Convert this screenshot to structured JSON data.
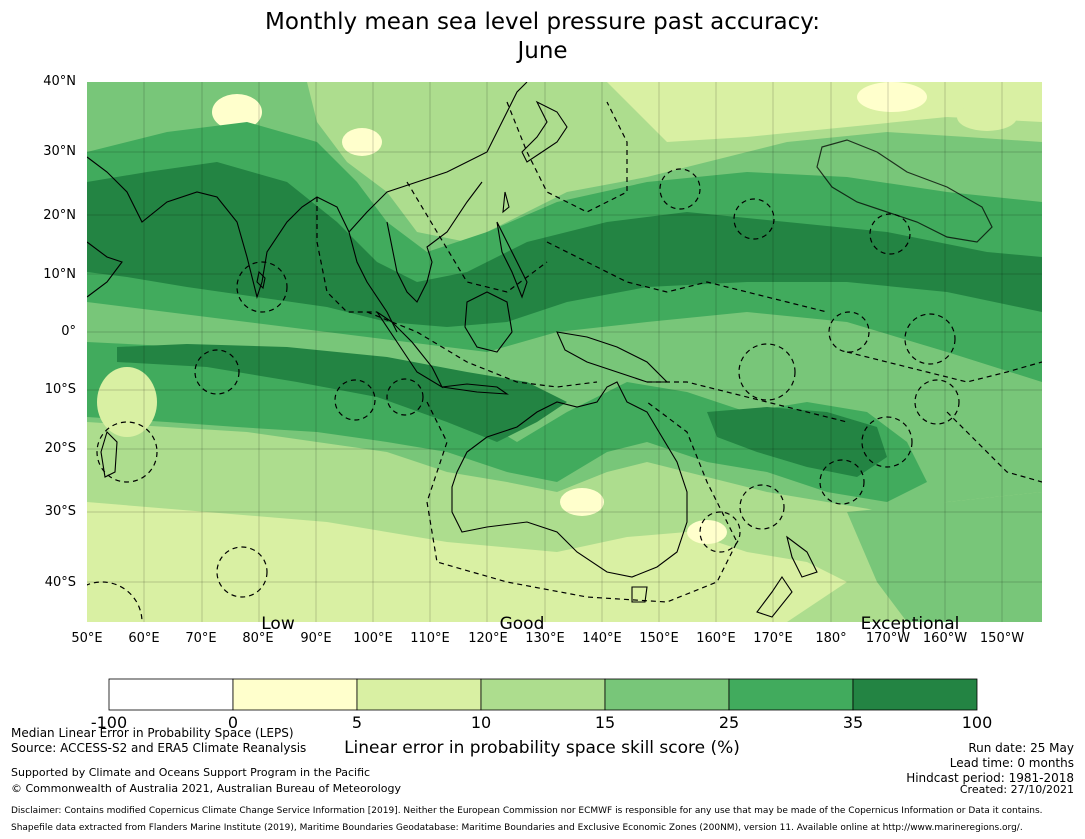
{
  "title": {
    "line1": "Monthly mean sea level pressure past accuracy:",
    "line2": "June"
  },
  "map": {
    "lat_labels": [
      "40°N",
      "30°N",
      "20°N",
      "10°N",
      "0°",
      "10°S",
      "20°S",
      "30°S",
      "40°S"
    ],
    "lon_labels": [
      "50°E",
      "60°E",
      "70°E",
      "80°E",
      "90°E",
      "100°E",
      "110°E",
      "120°E",
      "130°E",
      "140°E",
      "150°E",
      "160°E",
      "170°E",
      "180°",
      "170°W",
      "160°W",
      "150°W"
    ],
    "category_labels": {
      "low": "Low",
      "good": "Good",
      "exceptional": "Exceptional"
    },
    "colors": {
      "exceptional": "#238443",
      "dark": "#41ab5d",
      "mid": "#78c679",
      "light": "#addd8e",
      "pale": "#d9f0a3",
      "yellow": "#ffffcc",
      "land_outline": "#000000"
    }
  },
  "colorbar": {
    "label": "Linear error in probability space skill score (%)",
    "ticks": [
      "-100",
      "0",
      "5",
      "10",
      "15",
      "25",
      "35",
      "100"
    ],
    "colors": [
      "#ffffff",
      "#ffffcc",
      "#d9f0a3",
      "#addd8e",
      "#78c679",
      "#41ab5d",
      "#238443"
    ]
  },
  "footer": {
    "left1": "Median Linear Error in Probability Space (LEPS)",
    "left2": "Source: ACCESS-S2 and ERA5 Climate Reanalysis",
    "left3": "Supported by Climate and Oceans Support Program in the Pacific",
    "left4": "© Commonwealth of Australia 2021, Australian Bureau of Meteorology",
    "right1": "Run date: 25 May",
    "right2": "Lead time: 0 months",
    "right3": "Hindcast period: 1981-2018",
    "created": "Created: 27/10/2021",
    "disclaimer": "Disclaimer: Contains modified Copernicus Climate Change Service Information [2019]. Neither the European Commission nor ECMWF is responsible for any use that may be made of the Copernicus Information or Data it contains.",
    "shapefile": "Shapefile data extracted from Flanders Marine Institute (2019), Maritime Boundaries Geodatabase: Maritime Boundaries and Exclusive Economic Zones (200NM), version 11. Available online at http://www.marineregions.org/."
  }
}
